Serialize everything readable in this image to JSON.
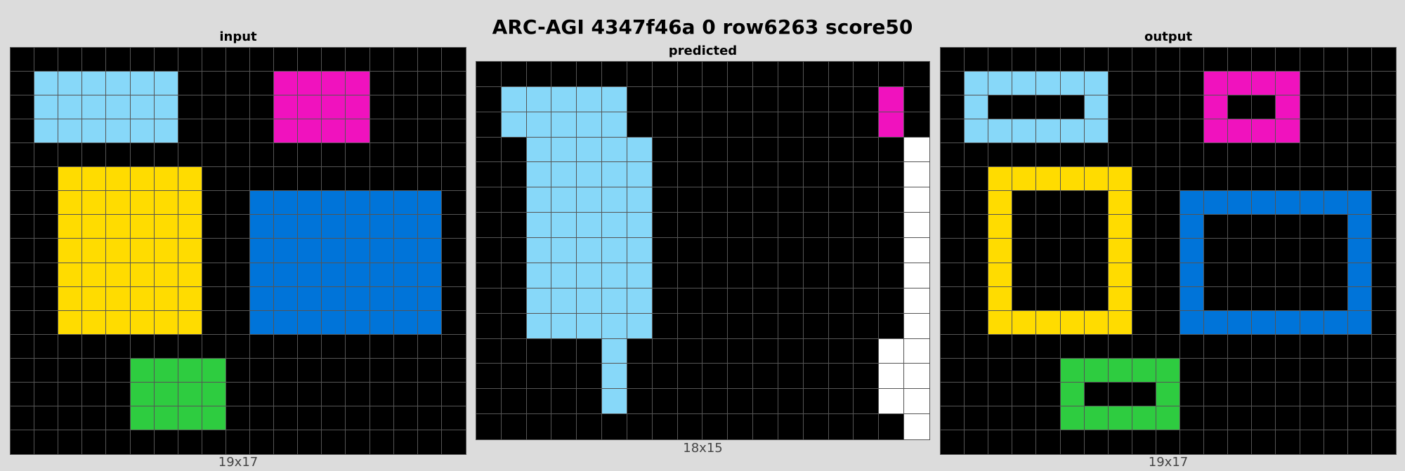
{
  "title": "ARC-AGI 4347f46a 0 row6263 score50",
  "palette": {
    "0": "#000000",
    "1": "#0074D9",
    "3": "#2ECC40",
    "4": "#FFDC00",
    "5": "#F012BE",
    "6": "#87D8F9",
    "9": "#FFFFFF"
  },
  "panels": [
    {
      "label": "input",
      "size": "19x17",
      "rows": [
        "0000000000000000000",
        "0666666000055550000",
        "0666666000055550000",
        "0666666000055550000",
        "0000000000000000000",
        "0044444400000000000",
        "0044444400111111110",
        "0044444400111111110",
        "0044444400111111110",
        "0044444400111111110",
        "0044444400111111110",
        "0044444400111111110",
        "0000000000000000000",
        "0000033330000000000",
        "0000033330000000000",
        "0000033330000000000",
        "0000000000000000000"
      ]
    },
    {
      "label": "predicted",
      "size": "18x15",
      "rows": [
        "000000000000000000",
        "066666000000000050",
        "066666000000000050",
        "006666600000000009",
        "006666600000000009",
        "006666600000000009",
        "006666600000000009",
        "006666600000000009",
        "006666600000000009",
        "006666600000000009",
        "006666600000000009",
        "000006000000000099",
        "000006000000000099",
        "000006000000000099",
        "000000000000000009"
      ]
    },
    {
      "label": "output",
      "size": "19x17",
      "rows": [
        "0000000000000000000",
        "0666666000055550000",
        "0600006000050050000",
        "0666666000055550000",
        "0000000000000000000",
        "0044444400000000000",
        "0040000400111111110",
        "0040000400100000010",
        "0040000400100000010",
        "0040000400100000010",
        "0040000400100000010",
        "0044444400111111110",
        "0000000000000000000",
        "0000033333000000000",
        "0000030003000000000",
        "0000033333000000000",
        "0000000000000000000"
      ]
    }
  ]
}
